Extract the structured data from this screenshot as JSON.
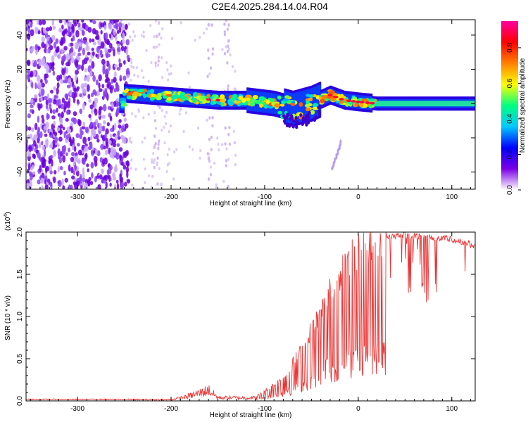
{
  "title": "C2E4.2025.284.14.04.R04",
  "chart_data": [
    {
      "type": "heatmap",
      "name": "spectrogram",
      "xlabel": "Height of straight line (km)",
      "ylabel": "Frequency (Hz)",
      "xlim": [
        -355,
        125
      ],
      "ylim": [
        -50,
        49
      ],
      "xticks": [
        -300,
        -200,
        -100,
        0,
        100
      ],
      "yticks": [
        -40,
        -20,
        0,
        20,
        40
      ],
      "colorbar": {
        "label": "Normalized spectral amplitude",
        "range": [
          0,
          0.95
        ],
        "ticks": [
          0.0,
          0.2,
          0.4,
          0.6,
          0.8
        ],
        "tick_labels": [
          "0.0",
          "0.2",
          "0.4",
          "0.6",
          "0.8"
        ],
        "colormap": [
          "#ffffff",
          "#7a00e6",
          "#0000ff",
          "#00c8ff",
          "#00ff80",
          "#ffff00",
          "#ff8000",
          "#ff0000",
          "#ff00a0"
        ]
      },
      "features": [
        {
          "name": "noise region",
          "x_range": [
            -355,
            -245
          ],
          "y_range": [
            -50,
            49
          ]
        },
        {
          "name": "signal band",
          "x_range": [
            -255,
            125
          ],
          "center_hz": [
            [
              -250,
              6
            ],
            [
              -200,
              4
            ],
            [
              -150,
              2
            ],
            [
              -120,
              2
            ],
            [
              -90,
              0
            ],
            [
              -70,
              -3
            ],
            [
              -50,
              0
            ],
            [
              -30,
              5
            ],
            [
              -15,
              2
            ],
            [
              0,
              1
            ],
            [
              20,
              0
            ],
            [
              125,
              0
            ]
          ]
        },
        {
          "name": "faint streak",
          "points": [
            [
              -28,
              -38
            ],
            [
              -18,
              -22
            ]
          ]
        }
      ]
    },
    {
      "type": "line",
      "name": "snr",
      "xlabel": "Height of straight line (km)",
      "ylabel": "SNR (10 * v/v)",
      "scale_label": "(x10",
      "scale_exponent": "4",
      "xlim": [
        -355,
        125
      ],
      "ylim": [
        0,
        2.0
      ],
      "xticks": [
        -300,
        -200,
        -100,
        0,
        100
      ],
      "yticks": [
        0.0,
        0.5,
        1.0,
        1.5,
        2.0
      ],
      "ytick_labels": [
        "0.0",
        "0.5",
        "1.0",
        "1.5",
        "2.0"
      ],
      "series": [
        {
          "name": "SNR",
          "color": "#ee3333",
          "envelope_x": [
            -355,
            -250,
            -200,
            -185,
            -170,
            -160,
            -150,
            -110,
            -100,
            -80,
            -60,
            -45,
            -30,
            -20,
            -10,
            0,
            10,
            20,
            30,
            40,
            50,
            60,
            70,
            80,
            90,
            100,
            110,
            125
          ],
          "envelope_y": [
            0.02,
            0.02,
            0.02,
            0.06,
            0.12,
            0.17,
            0.05,
            0.05,
            0.12,
            0.3,
            0.65,
            1.0,
            1.35,
            1.55,
            1.7,
            1.82,
            1.9,
            1.94,
            1.97,
            1.98,
            1.99,
            1.98,
            1.97,
            1.96,
            1.95,
            1.93,
            1.9,
            1.86
          ]
        }
      ]
    }
  ]
}
